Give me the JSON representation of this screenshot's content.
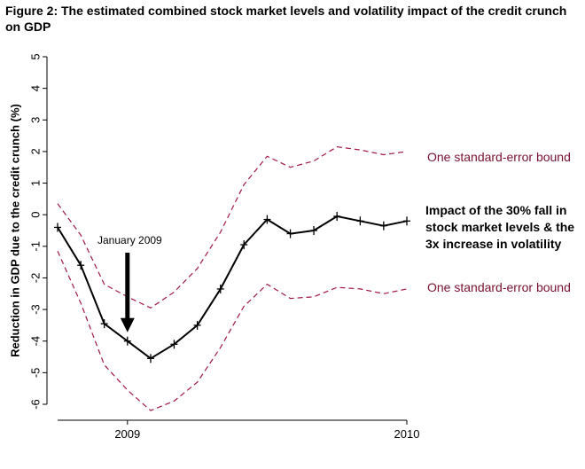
{
  "figure_title": "Figure 2: The estimated combined stock market levels and volatility impact of the credit crunch on GDP",
  "chart_data": {
    "type": "line",
    "title": "Figure 2: The estimated combined stock market levels and volatility impact of the credit crunch on GDP",
    "ylabel": "Reduction in GDP due to the credit crunch (%)",
    "xlabel": "",
    "ylim": [
      -6,
      5
    ],
    "yticks": [
      "5",
      "4",
      "3",
      "2",
      "1",
      "0",
      "-1",
      "-2",
      "-3",
      "-4",
      "-5",
      "-6"
    ],
    "xticks": [
      "2009",
      "2010"
    ],
    "x": [
      2008.75,
      2008.833,
      2008.917,
      2009.0,
      2009.083,
      2009.167,
      2009.25,
      2009.333,
      2009.417,
      2009.5,
      2009.583,
      2009.667,
      2009.75,
      2009.833,
      2009.917,
      2010.0
    ],
    "series": [
      {
        "name": "Impact of the 30% fall in stock market levels & the 3x increase in volatility",
        "style": "solid",
        "markers": true,
        "values": [
          -0.4,
          -1.6,
          -3.45,
          -4.0,
          -4.55,
          -4.1,
          -3.5,
          -2.35,
          -0.95,
          -0.15,
          -0.6,
          -0.5,
          -0.05,
          -0.2,
          -0.35,
          -0.2
        ]
      },
      {
        "name": "One standard-error bound (upper)",
        "style": "dashed",
        "values": [
          0.35,
          -0.65,
          -2.2,
          -2.6,
          -2.95,
          -2.45,
          -1.7,
          -0.55,
          0.95,
          1.85,
          1.5,
          1.7,
          2.15,
          2.05,
          1.9,
          2.0
        ]
      },
      {
        "name": "One standard-error bound (lower)",
        "style": "dashed",
        "values": [
          -1.15,
          -2.8,
          -4.75,
          -5.55,
          -6.2,
          -5.9,
          -5.3,
          -4.2,
          -2.9,
          -2.2,
          -2.65,
          -2.6,
          -2.3,
          -2.35,
          -2.5,
          -2.35
        ]
      }
    ],
    "annotations": {
      "upper_bound_label": "One standard-error bound",
      "lower_bound_label": "One standard-error bound",
      "impact_label_lines": [
        "Impact of the 30% fall in",
        "stock market levels & the",
        "3x increase in volatility"
      ],
      "arrow_label": "January 2009"
    }
  },
  "colors": {
    "central": "#000000",
    "bounds": "#a01840",
    "label": "#7a1030",
    "axis": "#000000"
  }
}
